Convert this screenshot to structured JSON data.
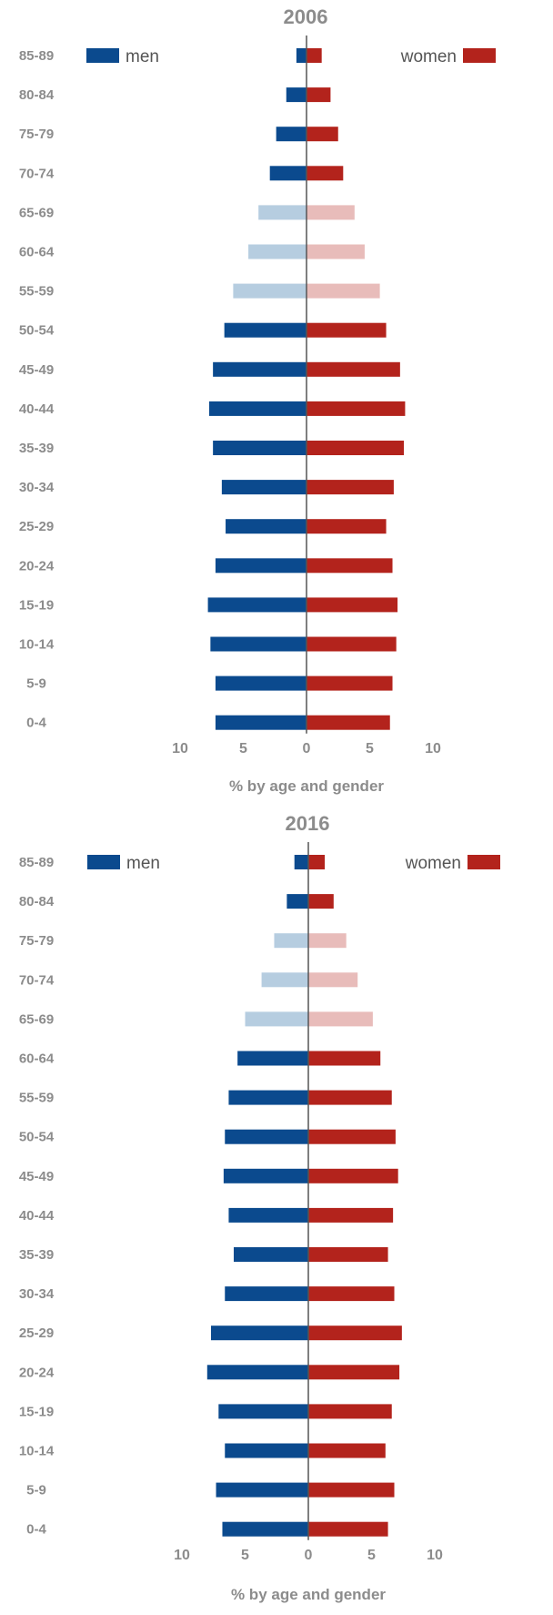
{
  "colors": {
    "men": "#0b4a8e",
    "women": "#b3231c",
    "men_light": "#b6cde0",
    "women_light": "#e8bcba",
    "text": "#8c8c8c",
    "axis": "#555555"
  },
  "legend": {
    "men": "men",
    "women": "women"
  },
  "chart_data": [
    {
      "type": "bar",
      "title": "2006",
      "xlabel": "% by age and gender",
      "xlim": [
        -10,
        10
      ],
      "xticks": [
        "10",
        "5",
        "0",
        "5",
        "10"
      ],
      "categories": [
        "85-89",
        "80-84",
        "75-79",
        "70-74",
        "65-69",
        "60-64",
        "55-59",
        "50-54",
        "45-49",
        "40-44",
        "35-39",
        "30-34",
        "25-29",
        "20-24",
        "15-19",
        "10-14",
        "5-9",
        "0-4"
      ],
      "series": [
        {
          "name": "men",
          "values": [
            0.8,
            1.6,
            2.4,
            2.9,
            3.8,
            4.6,
            5.8,
            6.5,
            7.4,
            7.7,
            7.4,
            6.7,
            6.4,
            7.2,
            7.8,
            7.6,
            7.2,
            7.2
          ]
        },
        {
          "name": "women",
          "values": [
            1.2,
            1.9,
            2.5,
            2.9,
            3.8,
            4.6,
            5.8,
            6.3,
            7.4,
            7.8,
            7.7,
            6.9,
            6.3,
            6.8,
            7.2,
            7.1,
            6.8,
            6.6
          ]
        }
      ],
      "highlight_light": [
        "65-69",
        "60-64",
        "55-59"
      ]
    },
    {
      "type": "bar",
      "title": "2016",
      "xlabel": "% by age and gender",
      "xlim": [
        -10,
        10
      ],
      "xticks": [
        "10",
        "5",
        "0",
        "5",
        "10"
      ],
      "categories": [
        "85-89",
        "80-84",
        "75-79",
        "70-74",
        "65-69",
        "60-64",
        "55-59",
        "50-54",
        "45-49",
        "40-44",
        "35-39",
        "30-34",
        "25-29",
        "20-24",
        "15-19",
        "10-14",
        "5-9",
        "0-4"
      ],
      "series": [
        {
          "name": "men",
          "values": [
            1.1,
            1.7,
            2.7,
            3.7,
            5.0,
            5.6,
            6.3,
            6.6,
            6.7,
            6.3,
            5.9,
            6.6,
            7.7,
            8.0,
            7.1,
            6.6,
            7.3,
            6.8
          ]
        },
        {
          "name": "women",
          "values": [
            1.3,
            2.0,
            3.0,
            3.9,
            5.1,
            5.7,
            6.6,
            6.9,
            7.1,
            6.7,
            6.3,
            6.8,
            7.4,
            7.2,
            6.6,
            6.1,
            6.8,
            6.3
          ]
        }
      ],
      "highlight_light": [
        "75-79",
        "70-74",
        "65-69"
      ]
    }
  ]
}
